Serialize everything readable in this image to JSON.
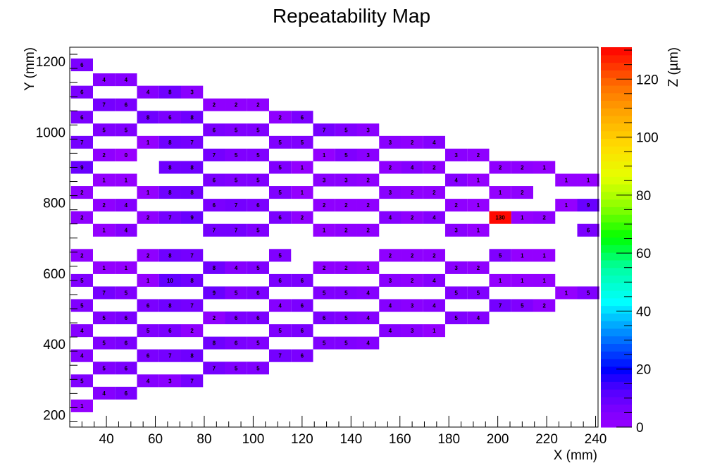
{
  "chart_data": {
    "type": "heatmap",
    "title": "Repeatability Map",
    "xlabel": "X (mm)",
    "ylabel": "Y (mm)",
    "zlabel": "Z (µm)",
    "xlim": [
      25,
      241
    ],
    "ylim": [
      165,
      1240
    ],
    "zlim": [
      0,
      131
    ],
    "x_ticks": [
      "40",
      "60",
      "80",
      "100",
      "120",
      "140",
      "160",
      "180",
      "200",
      "220",
      "240"
    ],
    "y_ticks": [
      "200",
      "400",
      "600",
      "800",
      "1000",
      "1200"
    ],
    "z_ticks": [
      "0",
      "20",
      "40",
      "60",
      "80",
      "100",
      "120"
    ],
    "cell_size": {
      "dx": 9,
      "dy": 36
    },
    "grid": false,
    "colorbar": "right",
    "cells": [
      {
        "x": 30,
        "y": 1190,
        "z": 6
      },
      {
        "x": 39,
        "y": 1148,
        "z": 4
      },
      {
        "x": 48,
        "y": 1148,
        "z": 4
      },
      {
        "x": 30,
        "y": 1113,
        "z": 6
      },
      {
        "x": 57,
        "y": 1113,
        "z": 4
      },
      {
        "x": 66,
        "y": 1113,
        "z": 8
      },
      {
        "x": 75,
        "y": 1113,
        "z": 3
      },
      {
        "x": 39,
        "y": 1077,
        "z": 7
      },
      {
        "x": 48,
        "y": 1077,
        "z": 6
      },
      {
        "x": 84,
        "y": 1077,
        "z": 2
      },
      {
        "x": 93,
        "y": 1077,
        "z": 2
      },
      {
        "x": 102,
        "y": 1077,
        "z": 2
      },
      {
        "x": 30,
        "y": 1042,
        "z": 6
      },
      {
        "x": 57,
        "y": 1042,
        "z": 8
      },
      {
        "x": 66,
        "y": 1042,
        "z": 6
      },
      {
        "x": 75,
        "y": 1042,
        "z": 8
      },
      {
        "x": 111,
        "y": 1042,
        "z": 2
      },
      {
        "x": 120,
        "y": 1042,
        "z": 6
      },
      {
        "x": 39,
        "y": 1006,
        "z": 5
      },
      {
        "x": 48,
        "y": 1006,
        "z": 5
      },
      {
        "x": 84,
        "y": 1006,
        "z": 6
      },
      {
        "x": 93,
        "y": 1006,
        "z": 5
      },
      {
        "x": 102,
        "y": 1006,
        "z": 5
      },
      {
        "x": 129,
        "y": 1006,
        "z": 7
      },
      {
        "x": 138,
        "y": 1006,
        "z": 5
      },
      {
        "x": 147,
        "y": 1006,
        "z": 3
      },
      {
        "x": 30,
        "y": 971,
        "z": 7
      },
      {
        "x": 57,
        "y": 971,
        "z": 1
      },
      {
        "x": 66,
        "y": 971,
        "z": 8
      },
      {
        "x": 75,
        "y": 971,
        "z": 7
      },
      {
        "x": 111,
        "y": 971,
        "z": 5
      },
      {
        "x": 120,
        "y": 971,
        "z": 5
      },
      {
        "x": 156,
        "y": 971,
        "z": 3
      },
      {
        "x": 165,
        "y": 971,
        "z": 2
      },
      {
        "x": 174,
        "y": 971,
        "z": 4
      },
      {
        "x": 39,
        "y": 935,
        "z": 2
      },
      {
        "x": 48,
        "y": 935,
        "z": 0
      },
      {
        "x": 84,
        "y": 935,
        "z": 7
      },
      {
        "x": 93,
        "y": 935,
        "z": 5
      },
      {
        "x": 102,
        "y": 935,
        "z": 5
      },
      {
        "x": 129,
        "y": 935,
        "z": 1
      },
      {
        "x": 138,
        "y": 935,
        "z": 5
      },
      {
        "x": 147,
        "y": 935,
        "z": 3
      },
      {
        "x": 183,
        "y": 935,
        "z": 3
      },
      {
        "x": 192,
        "y": 935,
        "z": 2
      },
      {
        "x": 30,
        "y": 900,
        "z": 9
      },
      {
        "x": 66,
        "y": 900,
        "z": 8
      },
      {
        "x": 75,
        "y": 900,
        "z": 8
      },
      {
        "x": 111,
        "y": 900,
        "z": 5
      },
      {
        "x": 120,
        "y": 900,
        "z": 1
      },
      {
        "x": 156,
        "y": 900,
        "z": 2
      },
      {
        "x": 165,
        "y": 900,
        "z": 4
      },
      {
        "x": 174,
        "y": 900,
        "z": 2
      },
      {
        "x": 201,
        "y": 900,
        "z": 2
      },
      {
        "x": 210,
        "y": 900,
        "z": 2
      },
      {
        "x": 219,
        "y": 900,
        "z": 1
      },
      {
        "x": 39,
        "y": 864,
        "z": 1
      },
      {
        "x": 48,
        "y": 864,
        "z": 1
      },
      {
        "x": 84,
        "y": 864,
        "z": 6
      },
      {
        "x": 93,
        "y": 864,
        "z": 5
      },
      {
        "x": 102,
        "y": 864,
        "z": 5
      },
      {
        "x": 129,
        "y": 864,
        "z": 3
      },
      {
        "x": 138,
        "y": 864,
        "z": 3
      },
      {
        "x": 147,
        "y": 864,
        "z": 2
      },
      {
        "x": 183,
        "y": 864,
        "z": 4
      },
      {
        "x": 192,
        "y": 864,
        "z": 1
      },
      {
        "x": 228,
        "y": 864,
        "z": 1
      },
      {
        "x": 237,
        "y": 864,
        "z": 1
      },
      {
        "x": 30,
        "y": 829,
        "z": 2
      },
      {
        "x": 57,
        "y": 829,
        "z": 1
      },
      {
        "x": 66,
        "y": 829,
        "z": 8
      },
      {
        "x": 75,
        "y": 829,
        "z": 8
      },
      {
        "x": 111,
        "y": 829,
        "z": 5
      },
      {
        "x": 120,
        "y": 829,
        "z": 1
      },
      {
        "x": 156,
        "y": 829,
        "z": 3
      },
      {
        "x": 165,
        "y": 829,
        "z": 2
      },
      {
        "x": 174,
        "y": 829,
        "z": 2
      },
      {
        "x": 201,
        "y": 829,
        "z": 1
      },
      {
        "x": 210,
        "y": 829,
        "z": 2
      },
      {
        "x": 39,
        "y": 793,
        "z": 2
      },
      {
        "x": 48,
        "y": 793,
        "z": 4
      },
      {
        "x": 84,
        "y": 793,
        "z": 6
      },
      {
        "x": 93,
        "y": 793,
        "z": 7
      },
      {
        "x": 102,
        "y": 793,
        "z": 6
      },
      {
        "x": 129,
        "y": 793,
        "z": 2
      },
      {
        "x": 138,
        "y": 793,
        "z": 2
      },
      {
        "x": 147,
        "y": 793,
        "z": 2
      },
      {
        "x": 183,
        "y": 793,
        "z": 2
      },
      {
        "x": 192,
        "y": 793,
        "z": 1
      },
      {
        "x": 228,
        "y": 793,
        "z": 1
      },
      {
        "x": 237,
        "y": 793,
        "z": 9
      },
      {
        "x": 30,
        "y": 758,
        "z": 2
      },
      {
        "x": 57,
        "y": 758,
        "z": 2
      },
      {
        "x": 66,
        "y": 758,
        "z": 7
      },
      {
        "x": 75,
        "y": 758,
        "z": 9
      },
      {
        "x": 111,
        "y": 758,
        "z": 6
      },
      {
        "x": 120,
        "y": 758,
        "z": 2
      },
      {
        "x": 156,
        "y": 758,
        "z": 4
      },
      {
        "x": 165,
        "y": 758,
        "z": 2
      },
      {
        "x": 174,
        "y": 758,
        "z": 4
      },
      {
        "x": 201,
        "y": 758,
        "z": 130
      },
      {
        "x": 210,
        "y": 758,
        "z": 1
      },
      {
        "x": 219,
        "y": 758,
        "z": 2
      },
      {
        "x": 39,
        "y": 722,
        "z": 1
      },
      {
        "x": 48,
        "y": 722,
        "z": 4
      },
      {
        "x": 84,
        "y": 722,
        "z": 7
      },
      {
        "x": 93,
        "y": 722,
        "z": 7
      },
      {
        "x": 102,
        "y": 722,
        "z": 5
      },
      {
        "x": 129,
        "y": 722,
        "z": 1
      },
      {
        "x": 138,
        "y": 722,
        "z": 2
      },
      {
        "x": 147,
        "y": 722,
        "z": 2
      },
      {
        "x": 183,
        "y": 722,
        "z": 3
      },
      {
        "x": 192,
        "y": 722,
        "z": 1
      },
      {
        "x": 237,
        "y": 722,
        "z": 6
      },
      {
        "x": 30,
        "y": 651,
        "z": 2
      },
      {
        "x": 57,
        "y": 651,
        "z": 2
      },
      {
        "x": 66,
        "y": 651,
        "z": 8
      },
      {
        "x": 75,
        "y": 651,
        "z": 7
      },
      {
        "x": 111,
        "y": 651,
        "z": 5
      },
      {
        "x": 156,
        "y": 651,
        "z": 2
      },
      {
        "x": 165,
        "y": 651,
        "z": 2
      },
      {
        "x": 174,
        "y": 651,
        "z": 2
      },
      {
        "x": 201,
        "y": 651,
        "z": 5
      },
      {
        "x": 210,
        "y": 651,
        "z": 1
      },
      {
        "x": 219,
        "y": 651,
        "z": 1
      },
      {
        "x": 39,
        "y": 616,
        "z": 1
      },
      {
        "x": 48,
        "y": 616,
        "z": 1
      },
      {
        "x": 84,
        "y": 616,
        "z": 8
      },
      {
        "x": 93,
        "y": 616,
        "z": 4
      },
      {
        "x": 102,
        "y": 616,
        "z": 5
      },
      {
        "x": 129,
        "y": 616,
        "z": 2
      },
      {
        "x": 138,
        "y": 616,
        "z": 2
      },
      {
        "x": 147,
        "y": 616,
        "z": 1
      },
      {
        "x": 183,
        "y": 616,
        "z": 3
      },
      {
        "x": 192,
        "y": 616,
        "z": 2
      },
      {
        "x": 30,
        "y": 580,
        "z": 5
      },
      {
        "x": 57,
        "y": 580,
        "z": 1
      },
      {
        "x": 66,
        "y": 580,
        "z": 10
      },
      {
        "x": 75,
        "y": 580,
        "z": 8
      },
      {
        "x": 111,
        "y": 580,
        "z": 6
      },
      {
        "x": 120,
        "y": 580,
        "z": 6
      },
      {
        "x": 156,
        "y": 580,
        "z": 3
      },
      {
        "x": 165,
        "y": 580,
        "z": 2
      },
      {
        "x": 174,
        "y": 580,
        "z": 4
      },
      {
        "x": 201,
        "y": 580,
        "z": 1
      },
      {
        "x": 210,
        "y": 580,
        "z": 1
      },
      {
        "x": 219,
        "y": 580,
        "z": 1
      },
      {
        "x": 39,
        "y": 545,
        "z": 7
      },
      {
        "x": 48,
        "y": 545,
        "z": 5
      },
      {
        "x": 84,
        "y": 545,
        "z": 9
      },
      {
        "x": 93,
        "y": 545,
        "z": 5
      },
      {
        "x": 102,
        "y": 545,
        "z": 6
      },
      {
        "x": 129,
        "y": 545,
        "z": 5
      },
      {
        "x": 138,
        "y": 545,
        "z": 5
      },
      {
        "x": 147,
        "y": 545,
        "z": 4
      },
      {
        "x": 183,
        "y": 545,
        "z": 5
      },
      {
        "x": 192,
        "y": 545,
        "z": 5
      },
      {
        "x": 228,
        "y": 545,
        "z": 1
      },
      {
        "x": 237,
        "y": 545,
        "z": 5
      },
      {
        "x": 30,
        "y": 509,
        "z": 5
      },
      {
        "x": 57,
        "y": 509,
        "z": 6
      },
      {
        "x": 66,
        "y": 509,
        "z": 8
      },
      {
        "x": 75,
        "y": 509,
        "z": 7
      },
      {
        "x": 111,
        "y": 509,
        "z": 4
      },
      {
        "x": 120,
        "y": 509,
        "z": 6
      },
      {
        "x": 156,
        "y": 509,
        "z": 4
      },
      {
        "x": 165,
        "y": 509,
        "z": 3
      },
      {
        "x": 174,
        "y": 509,
        "z": 4
      },
      {
        "x": 201,
        "y": 509,
        "z": 7
      },
      {
        "x": 210,
        "y": 509,
        "z": 5
      },
      {
        "x": 219,
        "y": 509,
        "z": 2
      },
      {
        "x": 39,
        "y": 474,
        "z": 5
      },
      {
        "x": 48,
        "y": 474,
        "z": 6
      },
      {
        "x": 84,
        "y": 474,
        "z": 2
      },
      {
        "x": 93,
        "y": 474,
        "z": 6
      },
      {
        "x": 102,
        "y": 474,
        "z": 6
      },
      {
        "x": 129,
        "y": 474,
        "z": 6
      },
      {
        "x": 138,
        "y": 474,
        "z": 5
      },
      {
        "x": 147,
        "y": 474,
        "z": 4
      },
      {
        "x": 183,
        "y": 474,
        "z": 5
      },
      {
        "x": 192,
        "y": 474,
        "z": 4
      },
      {
        "x": 30,
        "y": 438,
        "z": 4
      },
      {
        "x": 57,
        "y": 438,
        "z": 5
      },
      {
        "x": 66,
        "y": 438,
        "z": 6
      },
      {
        "x": 75,
        "y": 438,
        "z": 2
      },
      {
        "x": 111,
        "y": 438,
        "z": 5
      },
      {
        "x": 120,
        "y": 438,
        "z": 6
      },
      {
        "x": 156,
        "y": 438,
        "z": 4
      },
      {
        "x": 165,
        "y": 438,
        "z": 3
      },
      {
        "x": 174,
        "y": 438,
        "z": 1
      },
      {
        "x": 39,
        "y": 403,
        "z": 5
      },
      {
        "x": 48,
        "y": 403,
        "z": 6
      },
      {
        "x": 84,
        "y": 403,
        "z": 8
      },
      {
        "x": 93,
        "y": 403,
        "z": 6
      },
      {
        "x": 102,
        "y": 403,
        "z": 5
      },
      {
        "x": 129,
        "y": 403,
        "z": 5
      },
      {
        "x": 138,
        "y": 403,
        "z": 5
      },
      {
        "x": 147,
        "y": 403,
        "z": 4
      },
      {
        "x": 30,
        "y": 367,
        "z": 4
      },
      {
        "x": 57,
        "y": 367,
        "z": 6
      },
      {
        "x": 66,
        "y": 367,
        "z": 7
      },
      {
        "x": 75,
        "y": 367,
        "z": 8
      },
      {
        "x": 111,
        "y": 367,
        "z": 7
      },
      {
        "x": 120,
        "y": 367,
        "z": 6
      },
      {
        "x": 39,
        "y": 332,
        "z": 5
      },
      {
        "x": 48,
        "y": 332,
        "z": 6
      },
      {
        "x": 84,
        "y": 332,
        "z": 7
      },
      {
        "x": 93,
        "y": 332,
        "z": 5
      },
      {
        "x": 102,
        "y": 332,
        "z": 5
      },
      {
        "x": 30,
        "y": 296,
        "z": 5
      },
      {
        "x": 57,
        "y": 296,
        "z": 4
      },
      {
        "x": 66,
        "y": 296,
        "z": 3
      },
      {
        "x": 75,
        "y": 296,
        "z": 7
      },
      {
        "x": 39,
        "y": 261,
        "z": 4
      },
      {
        "x": 48,
        "y": 261,
        "z": 6
      },
      {
        "x": 30,
        "y": 225,
        "z": 1
      }
    ]
  }
}
